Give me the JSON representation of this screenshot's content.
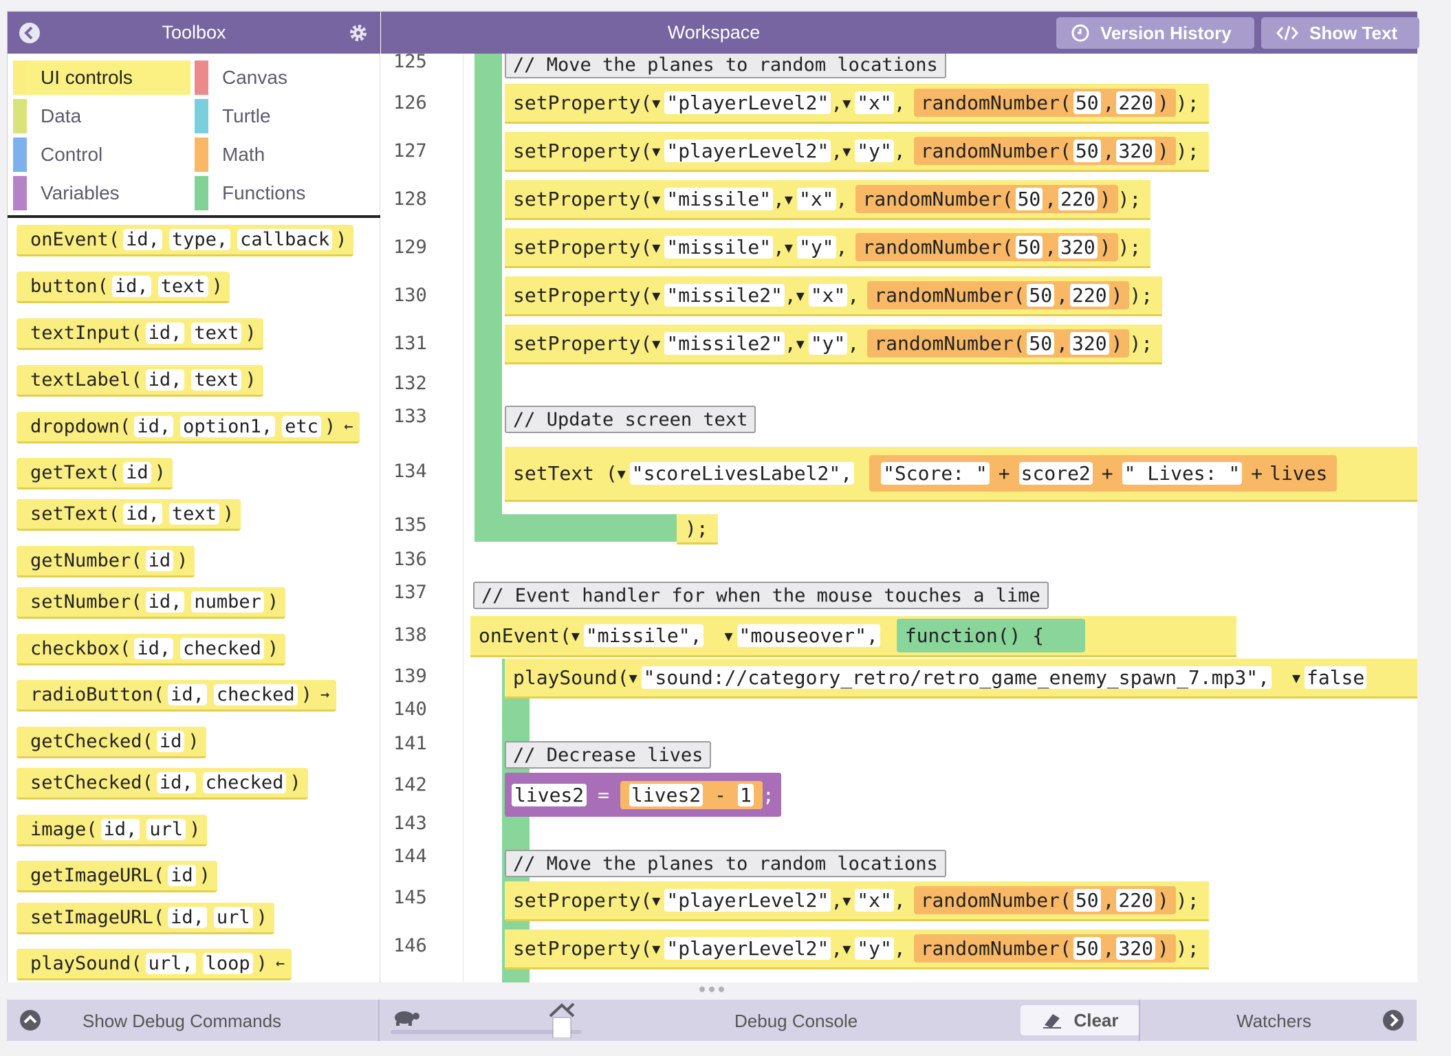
{
  "toolbox": {
    "title": "Toolbox",
    "categories": [
      {
        "label": "UI controls",
        "color": "#fbee81",
        "active": true
      },
      {
        "label": "Canvas",
        "color": "#ea8a8a"
      },
      {
        "label": "Data",
        "color": "#d8e37a"
      },
      {
        "label": "Turtle",
        "color": "#79cfdd"
      },
      {
        "label": "Control",
        "color": "#7fb0ee"
      },
      {
        "label": "Math",
        "color": "#f8b866"
      },
      {
        "label": "Variables",
        "color": "#b382c8"
      },
      {
        "label": "Functions",
        "color": "#82d195"
      }
    ],
    "blocks": [
      {
        "name": "onEvent",
        "args": [
          "id,",
          "type,",
          "callback"
        ],
        "arrow": ""
      },
      {
        "name": "button",
        "args": [
          "id,",
          "text"
        ],
        "arrow": ""
      },
      {
        "name": "textInput",
        "args": [
          "id,",
          "text"
        ],
        "arrow": ""
      },
      {
        "name": "textLabel",
        "args": [
          "id,",
          "text"
        ],
        "arrow": ""
      },
      {
        "name": "dropdown",
        "args": [
          "id,",
          "option1,",
          "etc"
        ],
        "arrow": "←"
      },
      {
        "name": "getText",
        "args": [
          "id"
        ],
        "arrow": ""
      },
      {
        "name": "setText",
        "args": [
          "id,",
          "text"
        ],
        "arrow": ""
      },
      {
        "name": "getNumber",
        "args": [
          "id"
        ],
        "arrow": ""
      },
      {
        "name": "setNumber",
        "args": [
          "id,",
          "number"
        ],
        "arrow": ""
      },
      {
        "name": "checkbox",
        "args": [
          "id,",
          "checked"
        ],
        "arrow": ""
      },
      {
        "name": "radioButton",
        "args": [
          "id,",
          "checked"
        ],
        "arrow": "→"
      },
      {
        "name": "getChecked",
        "args": [
          "id"
        ],
        "arrow": ""
      },
      {
        "name": "setChecked",
        "args": [
          "id,",
          "checked"
        ],
        "arrow": ""
      },
      {
        "name": "image",
        "args": [
          "id,",
          "url"
        ],
        "arrow": ""
      },
      {
        "name": "getImageURL",
        "args": [
          "id"
        ],
        "arrow": ""
      },
      {
        "name": "setImageURL",
        "args": [
          "id,",
          "url"
        ],
        "arrow": ""
      },
      {
        "name": "playSound",
        "args": [
          "url,",
          "loop"
        ],
        "arrow": "←"
      }
    ]
  },
  "workspace": {
    "title": "Workspace",
    "version_history_label": "Version History",
    "show_text_label": "Show Text",
    "line_numbers": [
      "125",
      "126",
      "127",
      "128",
      "129",
      "130",
      "131",
      "132",
      "133",
      "134",
      "135",
      "136",
      "137",
      "138",
      "139",
      "140",
      "141",
      "142",
      "143",
      "144",
      "145",
      "146"
    ],
    "comments": {
      "c125": "// Move the planes to random locations",
      "c133": "// Update screen text",
      "c137": "// Event handler for when the mouse touches a lime",
      "c141": "// Decrease lives",
      "c144": "// Move the planes to random locations"
    },
    "set_property_lines": [
      {
        "target": "\"playerLevel2\"",
        "prop": "\"x\"",
        "min": "50",
        "max": "220"
      },
      {
        "target": "\"playerLevel2\"",
        "prop": "\"y\"",
        "min": "50",
        "max": "320"
      },
      {
        "target": "\"missile\"",
        "prop": "\"x\"",
        "min": "50",
        "max": "220"
      },
      {
        "target": "\"missile\"",
        "prop": "\"y\"",
        "min": "50",
        "max": "320"
      },
      {
        "target": "\"missile2\"",
        "prop": "\"x\"",
        "min": "50",
        "max": "220"
      },
      {
        "target": "\"missile2\"",
        "prop": "\"y\"",
        "min": "50",
        "max": "320"
      },
      {
        "target": "\"playerLevel2\"",
        "prop": "\"x\"",
        "min": "50",
        "max": "220"
      },
      {
        "target": "\"playerLevel2\"",
        "prop": "\"y\"",
        "min": "50",
        "max": "320"
      }
    ],
    "set_property_fn": "setProperty(",
    "random_fn": "randomNumber(",
    "set_text_line": {
      "fn": "setText (",
      "id": "\"scoreLivesLabel2\",",
      "p1": "\"Score: \"",
      "plus": "+",
      "v1": "score2",
      "p2": "\" Lives: \"",
      "v2": "lives"
    },
    "close_brace": "}",
    "close_paren": ");",
    "on_event_line": {
      "fn": "onEvent(",
      "id": "\"missile\",",
      "type": "\"mouseover\",",
      "func": "function() {"
    },
    "play_sound_line": {
      "fn": "playSound(",
      "url": "\"sound://category_retro/retro_game_enemy_spawn_7.mp3\",",
      "loop": "false"
    },
    "lives_line": {
      "var": "lives2",
      "eq": "=",
      "var2": "lives2",
      "minus": "-",
      "num": "1",
      "semi": ";"
    }
  },
  "bottom": {
    "debug_commands_label": "Show Debug Commands",
    "debug_console_label": "Debug Console",
    "clear_label": "Clear",
    "watchers_label": "Watchers"
  }
}
